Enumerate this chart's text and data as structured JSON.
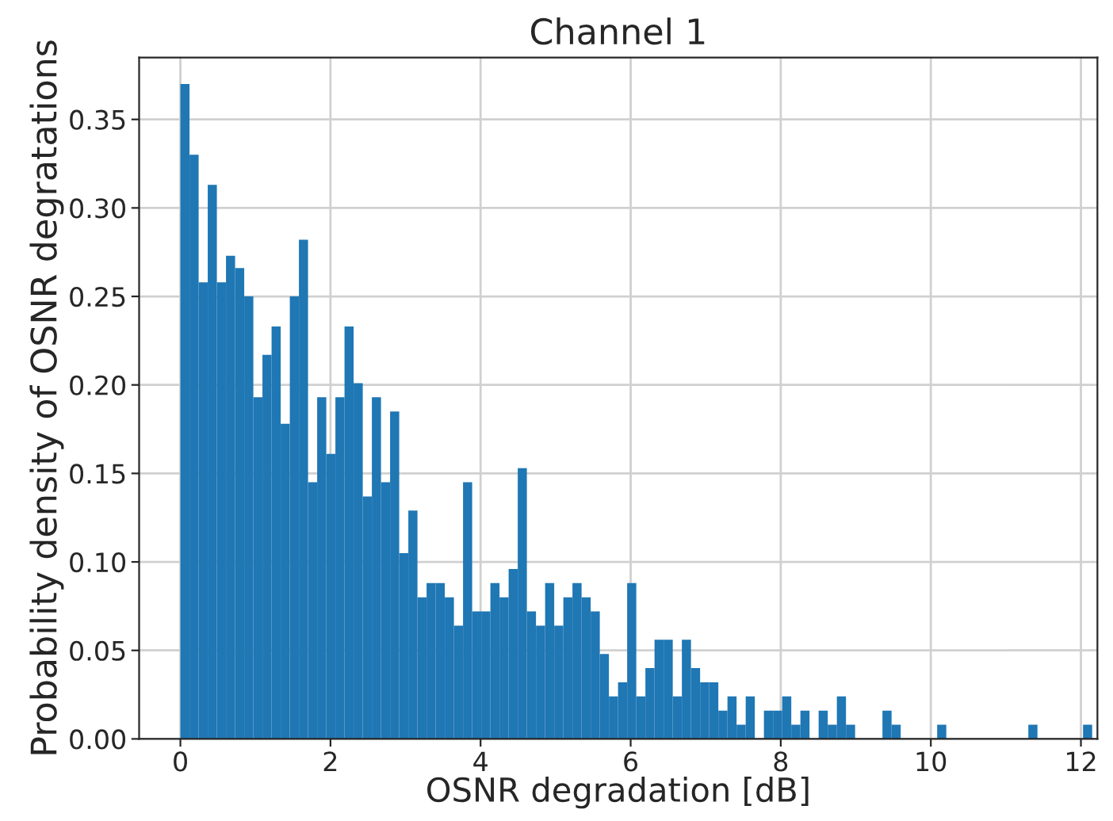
{
  "chart_data": {
    "type": "histogram",
    "title": "Channel 1",
    "xlabel": "OSNR degradation [dB]",
    "ylabel": "Probability density of OSNR degratations",
    "color": "#1f77b4",
    "bins": [
      0,
      0.1215,
      0.243,
      0.3645,
      0.486,
      0.6075,
      0.729,
      0.8505,
      0.972,
      1.0935,
      1.215,
      1.3365,
      1.458,
      1.5795,
      1.701,
      1.8225,
      1.944,
      2.0655,
      2.187,
      2.3085,
      2.43,
      2.5515,
      2.673,
      2.7945,
      2.916,
      3.0375,
      3.159,
      3.2805,
      3.402,
      3.5235,
      3.645,
      3.7665,
      3.888,
      4.0095,
      4.131,
      4.2525,
      4.374,
      4.4955,
      4.617,
      4.7385,
      4.86,
      4.9815,
      5.103,
      5.2245,
      5.346,
      5.4675,
      5.589,
      5.7105,
      5.832,
      5.9535,
      6.075,
      6.1965,
      6.318,
      6.4395,
      6.561,
      6.6825,
      6.804,
      6.9255,
      7.047,
      7.1685,
      7.29,
      7.4115,
      7.533,
      7.6545,
      7.776,
      7.8975,
      8.019,
      8.1405,
      8.262,
      8.3835,
      8.505,
      8.6265,
      8.748,
      8.8695,
      8.991,
      9.1125,
      9.234,
      9.3555,
      9.477,
      9.5985,
      9.72,
      9.8415,
      9.963,
      10.0845,
      10.206,
      10.3275,
      10.449,
      10.5705,
      10.692,
      10.8135,
      10.935,
      11.0565,
      11.178,
      11.2995,
      11.421,
      11.5425,
      11.664,
      11.7855,
      11.907,
      12.0285,
      12.15
    ],
    "values": [
      0.37,
      0.33,
      0.258,
      0.313,
      0.258,
      0.273,
      0.266,
      0.25,
      0.193,
      0.217,
      0.233,
      0.178,
      0.25,
      0.282,
      0.145,
      0.193,
      0.161,
      0.193,
      0.233,
      0.201,
      0.137,
      0.193,
      0.145,
      0.185,
      0.105,
      0.129,
      0.08,
      0.088,
      0.088,
      0.08,
      0.064,
      0.145,
      0.072,
      0.072,
      0.088,
      0.08,
      0.096,
      0.153,
      0.072,
      0.064,
      0.088,
      0.064,
      0.08,
      0.088,
      0.08,
      0.072,
      0.048,
      0.024,
      0.032,
      0.088,
      0.024,
      0.04,
      0.056,
      0.056,
      0.024,
      0.056,
      0.04,
      0.032,
      0.032,
      0.016,
      0.024,
      0.008,
      0.024,
      0,
      0.016,
      0.016,
      0.024,
      0.008,
      0.016,
      0,
      0.016,
      0.008,
      0.024,
      0.008,
      0,
      0,
      0,
      0.016,
      0.008,
      0,
      0,
      0,
      0,
      0.008,
      0,
      0,
      0,
      0,
      0,
      0,
      0,
      0,
      0,
      0.008,
      0,
      0,
      0,
      0,
      0,
      0.008
    ],
    "xlim": [
      -0.55,
      12.22
    ],
    "ylim": [
      0,
      0.385
    ],
    "xticks": [
      0,
      2,
      4,
      6,
      8,
      10,
      12
    ],
    "yticks": [
      {
        "value": 0,
        "label": "0.00"
      },
      {
        "value": 0.05,
        "label": "0.05"
      },
      {
        "value": 0.1,
        "label": "0.10"
      },
      {
        "value": 0.15,
        "label": "0.15"
      },
      {
        "value": 0.2,
        "label": "0.20"
      },
      {
        "value": 0.25,
        "label": "0.25"
      },
      {
        "value": 0.3,
        "label": "0.30"
      },
      {
        "value": 0.35,
        "label": "0.35"
      }
    ],
    "grid": true
  }
}
